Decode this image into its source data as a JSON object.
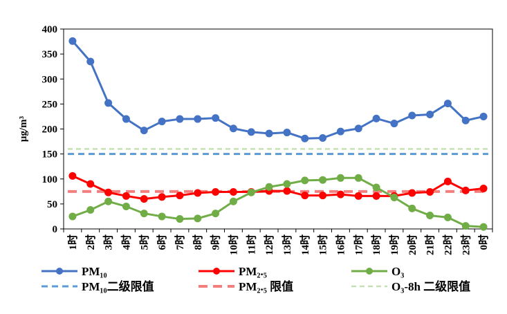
{
  "chart_data": {
    "type": "line",
    "ylabel": "μg/m³",
    "ylim": [
      0,
      400
    ],
    "yticks": [
      0,
      50,
      100,
      150,
      200,
      250,
      300,
      350,
      400
    ],
    "categories": [
      "1时",
      "2时",
      "3时",
      "4时",
      "5时",
      "6时",
      "7时",
      "8时",
      "9时",
      "10时",
      "11时",
      "12时",
      "13时",
      "14时",
      "15时",
      "16时",
      "17时",
      "18时",
      "19时",
      "20时",
      "21时",
      "22时",
      "23时",
      "0时"
    ],
    "series": [
      {
        "name": "PM₁₀",
        "color": "#4472C4",
        "values": [
          376,
          335,
          252,
          220,
          197,
          215,
          220,
          220,
          222,
          201,
          194,
          191,
          193,
          181,
          182,
          195,
          201,
          221,
          211,
          227,
          229,
          251,
          217,
          225
        ]
      },
      {
        "name": "PM₂.₅",
        "color": "#FF0000",
        "values": [
          106,
          90,
          73,
          66,
          60,
          64,
          67,
          72,
          74,
          74,
          74,
          76,
          76,
          67,
          67,
          69,
          66,
          66,
          66,
          72,
          74,
          95,
          77,
          81
        ]
      },
      {
        "name": "O₃",
        "color": "#70AD47",
        "values": [
          25,
          38,
          55,
          45,
          31,
          25,
          20,
          21,
          31,
          55,
          73,
          84,
          90,
          97,
          98,
          102,
          102,
          83,
          63,
          41,
          27,
          23,
          6,
          4
        ]
      }
    ],
    "reference_lines": [
      {
        "name": "PM₁₀二级限值",
        "color": "#5B9BD5",
        "value": 150
      },
      {
        "name": "PM₂.₅ 限值",
        "color": "#F47E7E",
        "value": 75
      },
      {
        "name": "O₃-8h 二级限值",
        "color": "#C5E0B4",
        "value": 160
      }
    ]
  }
}
